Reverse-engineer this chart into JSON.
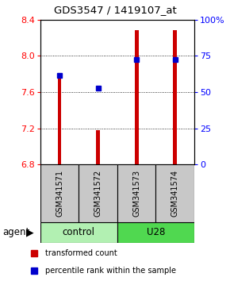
{
  "title": "GDS3547 / 1419107_at",
  "samples": [
    "GSM341571",
    "GSM341572",
    "GSM341573",
    "GSM341574"
  ],
  "bar_bottom": 6.8,
  "bar_values": [
    7.78,
    7.18,
    8.28,
    8.28
  ],
  "percentile_values": [
    7.78,
    7.64,
    7.96,
    7.96
  ],
  "ylim_left": [
    6.8,
    8.4
  ],
  "ylim_right": [
    0,
    100
  ],
  "yticks_left": [
    6.8,
    7.2,
    7.6,
    8.0,
    8.4
  ],
  "yticks_right": [
    0,
    25,
    50,
    75,
    100
  ],
  "ytick_labels_right": [
    "0",
    "25",
    "50",
    "75",
    "100%"
  ],
  "bar_color": "#CC0000",
  "percentile_color": "#0000CC",
  "legend_red": "transformed count",
  "legend_blue": "percentile rank within the sample",
  "agent_label": "agent",
  "control_label": "control",
  "u28_label": "U28",
  "sample_box_color": "#c8c8c8",
  "control_bg": "#b2f0b2",
  "u28_bg": "#50d850",
  "bar_width": 0.1
}
